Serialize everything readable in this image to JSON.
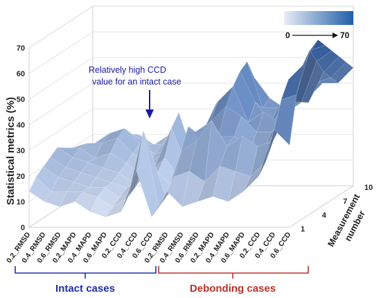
{
  "chart_data": {
    "type": "surface",
    "ylabel": "Statistical metrics (%)",
    "zlabel_line1": "Measurement",
    "zlabel_line2": "number",
    "ylim": [
      0,
      70
    ],
    "yticks": [
      "0",
      "10",
      "20",
      "30",
      "40",
      "50",
      "60",
      "70"
    ],
    "measurement_ticks": [
      "1",
      "4",
      "7",
      "10"
    ],
    "categories": [
      "0.2_RMSD",
      "0.4_RMSD",
      "0.6_RMSD",
      "0.2_MAPD",
      "0.4_MAPD",
      "0.6_MAPD",
      "0.2_CCD",
      "0.4_CCD",
      "0.6_CCD",
      "0.2_RMSD",
      "0.4_RMSD",
      "0.6_RMSD",
      "0.2_MAPD",
      "0.4_MAPD",
      "0.6_MAPD",
      "0.2_CCD",
      "0.4_CCD",
      "0.6_CCD"
    ],
    "groups": [
      {
        "label": "Intact cases",
        "color": "#1f2ea8",
        "from": 0,
        "to": 8
      },
      {
        "label": "Debonding cases",
        "color": "#b8322a",
        "from": 9,
        "to": 17
      }
    ],
    "annotation": {
      "line1": "Relatively high CCD",
      "line2": "value for an intact case",
      "category_index": 7
    },
    "colorbar": {
      "min_label": "0",
      "max_label": "70",
      "min": 0,
      "max": 70,
      "color_low": "#e8ecf6",
      "color_high": "#1f5fa8"
    },
    "z": [
      [
        14,
        10,
        8,
        10,
        6,
        4,
        6,
        22,
        4,
        14,
        8,
        10,
        12,
        10,
        14,
        20,
        38,
        32
      ],
      [
        18,
        12,
        12,
        12,
        10,
        6,
        10,
        36,
        6,
        18,
        20,
        16,
        22,
        20,
        18,
        24,
        48,
        50
      ],
      [
        20,
        16,
        14,
        12,
        12,
        8,
        12,
        26,
        8,
        26,
        30,
        38,
        28,
        32,
        28,
        30,
        54,
        60
      ],
      [
        22,
        18,
        16,
        14,
        12,
        10,
        14,
        16,
        10,
        34,
        26,
        30,
        30,
        24,
        26,
        34,
        50,
        64
      ],
      [
        24,
        20,
        18,
        16,
        14,
        10,
        14,
        20,
        12,
        30,
        34,
        40,
        36,
        30,
        30,
        36,
        56,
        66
      ],
      [
        22,
        22,
        18,
        20,
        16,
        12,
        16,
        30,
        14,
        28,
        40,
        46,
        32,
        36,
        32,
        40,
        60,
        62
      ],
      [
        20,
        22,
        22,
        24,
        18,
        14,
        18,
        34,
        16,
        32,
        34,
        50,
        38,
        30,
        36,
        38,
        54,
        58
      ],
      [
        18,
        20,
        24,
        26,
        20,
        16,
        18,
        24,
        18,
        36,
        30,
        52,
        34,
        34,
        40,
        36,
        48,
        54
      ],
      [
        16,
        18,
        22,
        22,
        18,
        18,
        20,
        20,
        20,
        30,
        32,
        44,
        36,
        32,
        38,
        42,
        44,
        50
      ],
      [
        14,
        16,
        20,
        20,
        16,
        20,
        18,
        18,
        22,
        26,
        28,
        38,
        30,
        30,
        34,
        40,
        40,
        46
      ]
    ]
  }
}
